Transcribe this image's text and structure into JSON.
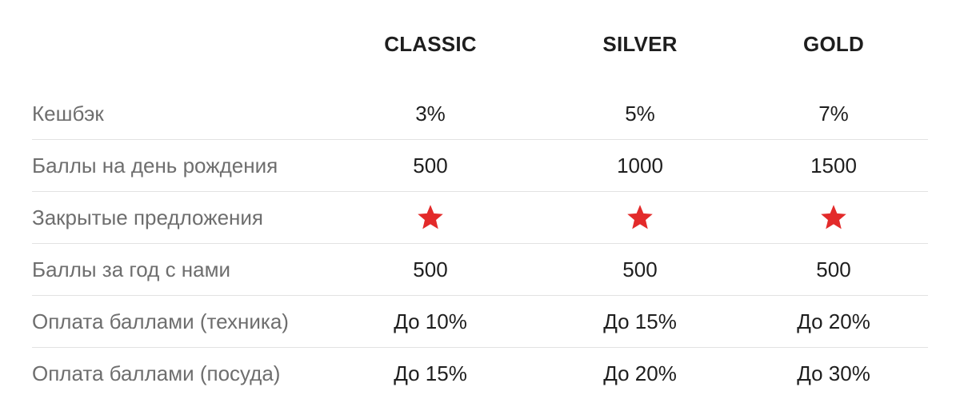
{
  "colors": {
    "star": "#e32a2a",
    "label_text": "#6e6e6e",
    "value_text": "#1e1e1e",
    "divider": "#e2e2e2"
  },
  "tiers": [
    "CLASSIC",
    "SILVER",
    "GOLD"
  ],
  "rows": [
    {
      "label": "Кешбэк",
      "values": [
        "3%",
        "5%",
        "7%"
      ]
    },
    {
      "label": "Баллы на день рождения",
      "values": [
        "500",
        "1000",
        "1500"
      ]
    },
    {
      "label": "Закрытые предложения",
      "icon": "star-icon",
      "values": [
        true,
        true,
        true
      ]
    },
    {
      "label": "Баллы за год с нами",
      "values": [
        "500",
        "500",
        "500"
      ]
    },
    {
      "label": "Оплата баллами (техника)",
      "values": [
        "До 10%",
        "До 15%",
        "До 20%"
      ]
    },
    {
      "label": "Оплата баллами (посуда)",
      "values": [
        "До 15%",
        "До 20%",
        "До 30%"
      ]
    }
  ]
}
